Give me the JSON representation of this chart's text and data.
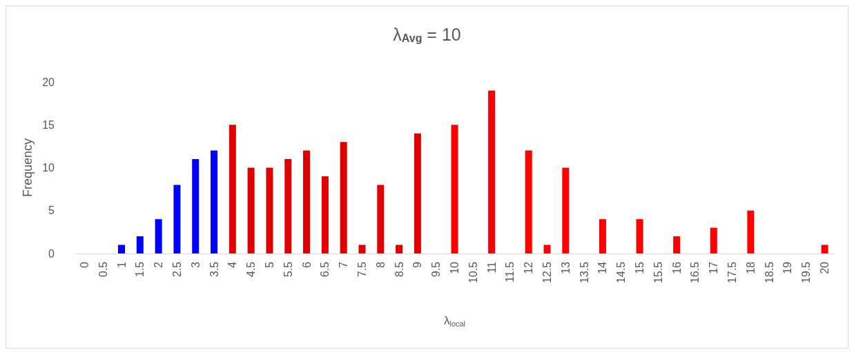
{
  "chart_data": {
    "type": "bar",
    "title": "λ$_{Avg}$ = 10",
    "xlabel": "λ$_{local}$",
    "ylabel": "Frequency",
    "categories": [
      "0",
      "0.5",
      "1",
      "1.5",
      "2",
      "2.5",
      "3",
      "3.5",
      "4",
      "4.5",
      "5",
      "5.5",
      "6",
      "6.5",
      "7",
      "7.5",
      "8",
      "8.5",
      "9",
      "9.5",
      "10",
      "10.5",
      "11",
      "11.5",
      "12",
      "12.5",
      "13",
      "13.5",
      "14",
      "14.5",
      "15",
      "15.5",
      "16",
      "16.5",
      "17",
      "17.5",
      "18",
      "18.5",
      "19",
      "19.5",
      "20"
    ],
    "series": [
      {
        "color": "#0000ff",
        "values": [
          null,
          null,
          1,
          2,
          4,
          8,
          11,
          12,
          null,
          null,
          null,
          null,
          null,
          null,
          null,
          null,
          null,
          null,
          null,
          null,
          null,
          null,
          null,
          null,
          null,
          null,
          null,
          null,
          null,
          null,
          null,
          null,
          null,
          null,
          null,
          null,
          null,
          null,
          null,
          null,
          null
        ]
      },
      {
        "color": "#e00000",
        "values": [
          null,
          null,
          null,
          null,
          null,
          null,
          null,
          null,
          15,
          10,
          10,
          11,
          12,
          9,
          13,
          1,
          8,
          1,
          14,
          null,
          null,
          null,
          null,
          null,
          null,
          null,
          null,
          null,
          null,
          null,
          null,
          null,
          null,
          null,
          null,
          null,
          null,
          null,
          null,
          null,
          null
        ]
      },
      {
        "color": "#ff0000",
        "values": [
          null,
          null,
          null,
          null,
          null,
          null,
          null,
          null,
          null,
          null,
          null,
          null,
          null,
          null,
          null,
          null,
          null,
          null,
          null,
          null,
          15,
          null,
          19,
          null,
          12,
          1,
          10,
          null,
          4,
          null,
          4,
          null,
          2,
          null,
          3,
          null,
          5,
          null,
          null,
          null,
          1
        ]
      }
    ],
    "ylim": [
      0,
      20
    ],
    "yticks": [
      0,
      5,
      10,
      15,
      20
    ],
    "grid": false
  }
}
